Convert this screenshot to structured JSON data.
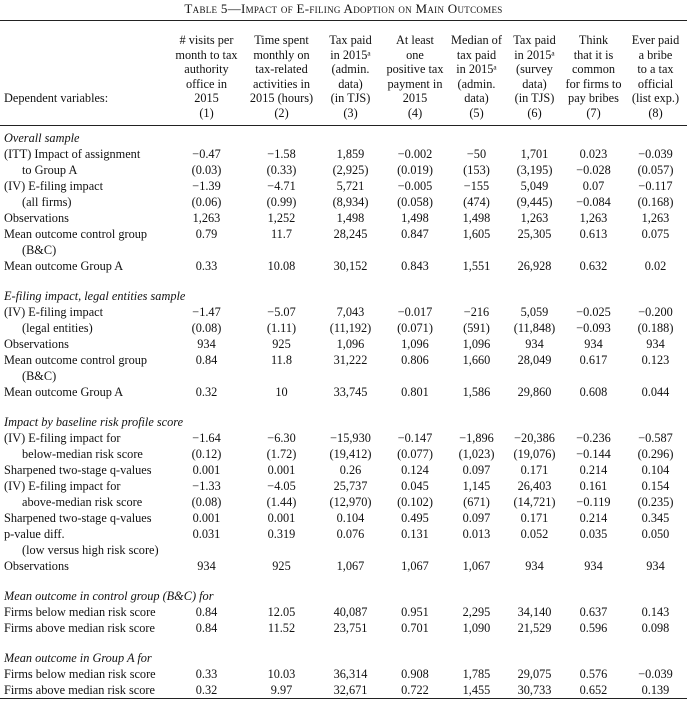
{
  "title": "Table 5—Impact of E-filing Adoption on Main Outcomes",
  "header": {
    "row_label": "Dependent variables:",
    "columns": [
      {
        "lines": [
          "# visits per",
          "month to tax",
          "authority",
          "office in",
          "2015"
        ],
        "number": "(1)"
      },
      {
        "lines": [
          "Time spent",
          "monthly on",
          "tax-related",
          "activities in",
          "2015 (hours)"
        ],
        "number": "(2)"
      },
      {
        "lines": [
          "Tax paid",
          "in 2015ᵃ",
          "(admin.",
          "data)",
          "(in TJS)"
        ],
        "number": "(3)"
      },
      {
        "lines": [
          "At least",
          "one",
          "positive tax",
          "payment in",
          "2015"
        ],
        "number": "(4)"
      },
      {
        "lines": [
          "Median of",
          "tax paid",
          "in 2015ᵃ",
          "(admin.",
          "data)"
        ],
        "number": "(5)"
      },
      {
        "lines": [
          "Tax paid",
          "in 2015ᵃ",
          "(survey",
          "data)",
          "(in TJS)"
        ],
        "number": "(6)"
      },
      {
        "lines": [
          "Think",
          "that it is",
          "common",
          "for firms to",
          "pay bribes"
        ],
        "number": "(7)"
      },
      {
        "lines": [
          "Ever paid",
          "a bribe",
          "to a tax",
          "official",
          "(list exp.)"
        ],
        "number": "(8)"
      }
    ]
  },
  "sections": [
    {
      "title": "Overall sample",
      "rows": [
        {
          "label": "(ITT) Impact of assignment",
          "values": [
            "−0.47",
            "−1.58",
            "1,859",
            "−0.002",
            "−50",
            "1,701",
            "0.023",
            "−0.039"
          ],
          "second_line": {
            "label": "to Group A",
            "values": [
              "(0.03)",
              "(0.33)",
              "(2,925)",
              "(0.019)",
              "(153)",
              "(3,195)",
              "−0.028",
              "(0.057)"
            ]
          }
        },
        {
          "label": "(IV) E-filing impact",
          "values": [
            "−1.39",
            "−4.71",
            "5,721",
            "−0.005",
            "−155",
            "5,049",
            "0.07",
            "−0.117"
          ],
          "second_line": {
            "label": "(all firms)",
            "values": [
              "(0.06)",
              "(0.99)",
              "(8,934)",
              "(0.058)",
              "(474)",
              "(9,445)",
              "−0.084",
              "(0.168)"
            ]
          }
        },
        {
          "label": "Observations",
          "values": [
            "1,263",
            "1,252",
            "1,498",
            "1,498",
            "1,498",
            "1,263",
            "1,263",
            "1,263"
          ]
        },
        {
          "label": "Mean outcome control group",
          "values": [
            "0.79",
            "11.7",
            "28,245",
            "0.847",
            "1,605",
            "25,305",
            "0.613",
            "0.075"
          ],
          "second_line": {
            "label": "(B&C)"
          }
        },
        {
          "label": "Mean outcome Group A",
          "values": [
            "0.33",
            "10.08",
            "30,152",
            "0.843",
            "1,551",
            "26,928",
            "0.632",
            "0.02"
          ]
        }
      ]
    },
    {
      "title": "E-filing impact, legal entities sample",
      "rows": [
        {
          "label": "(IV) E-filing impact",
          "values": [
            "−1.47",
            "−5.07",
            "7,043",
            "−0.017",
            "−216",
            "5,059",
            "−0.025",
            "−0.200"
          ],
          "second_line": {
            "label": "(legal entities)",
            "values": [
              "(0.08)",
              "(1.11)",
              "(11,192)",
              "(0.071)",
              "(591)",
              "(11,848)",
              "−0.093",
              "(0.188)"
            ]
          }
        },
        {
          "label": "Observations",
          "values": [
            "934",
            "925",
            "1,096",
            "1,096",
            "1,096",
            "934",
            "934",
            "934"
          ]
        },
        {
          "label": "Mean outcome control group",
          "values": [
            "0.84",
            "11.8",
            "31,222",
            "0.806",
            "1,660",
            "28,049",
            "0.617",
            "0.123"
          ],
          "second_line": {
            "label": "(B&C)"
          }
        },
        {
          "label": "Mean outcome Group A",
          "values": [
            "0.32",
            "10",
            "33,745",
            "0.801",
            "1,586",
            "29,860",
            "0.608",
            "0.044"
          ]
        }
      ]
    },
    {
      "title": "Impact by baseline risk profile score",
      "rows": [
        {
          "label": "(IV) E-filing impact for",
          "values": [
            "−1.64",
            "−6.30",
            "−15,930",
            "−0.147",
            "−1,896",
            "−20,386",
            "−0.236",
            "−0.587"
          ],
          "second_line": {
            "label": "below-median risk score",
            "values": [
              "(0.12)",
              "(1.72)",
              "(19,412)",
              "(0.077)",
              "(1,023)",
              "(19,076)",
              "−0.144",
              "(0.296)"
            ]
          }
        },
        {
          "label": "Sharpened two-stage q-values",
          "values": [
            "0.001",
            "0.001",
            "0.26",
            "0.124",
            "0.097",
            "0.171",
            "0.214",
            "0.104"
          ]
        },
        {
          "label": "(IV) E-filing impact for",
          "values": [
            "−1.33",
            "−4.05",
            "25,737",
            "0.045",
            "1,145",
            "26,403",
            "0.161",
            "0.154"
          ],
          "second_line": {
            "label": "above-median risk score",
            "values": [
              "(0.08)",
              "(1.44)",
              "(12,970)",
              "(0.102)",
              "(671)",
              "(14,721)",
              "−0.119",
              "(0.235)"
            ]
          }
        },
        {
          "label": "Sharpened two-stage q-values",
          "values": [
            "0.001",
            "0.001",
            "0.104",
            "0.495",
            "0.097",
            "0.171",
            "0.214",
            "0.345"
          ]
        },
        {
          "label": "p-value diff.",
          "values": [
            "0.031",
            "0.319",
            "0.076",
            "0.131",
            "0.013",
            "0.052",
            "0.035",
            "0.050"
          ],
          "second_line": {
            "label": "(low versus high risk score)"
          }
        },
        {
          "label": "Observations",
          "values": [
            "934",
            "925",
            "1,067",
            "1,067",
            "1,067",
            "934",
            "934",
            "934"
          ]
        }
      ]
    },
    {
      "title": "Mean outcome in control group (B&C) for",
      "rows": [
        {
          "label": "Firms below median risk score",
          "values": [
            "0.84",
            "12.05",
            "40,087",
            "0.951",
            "2,295",
            "34,140",
            "0.637",
            "0.143"
          ]
        },
        {
          "label": "Firms above median risk score",
          "values": [
            "0.84",
            "11.52",
            "23,751",
            "0.701",
            "1,090",
            "21,529",
            "0.596",
            "0.098"
          ]
        }
      ]
    },
    {
      "title": "Mean outcome in Group A for",
      "rows": [
        {
          "label": "Firms below median risk score",
          "values": [
            "0.33",
            "10.03",
            "36,314",
            "0.908",
            "1,785",
            "29,075",
            "0.576",
            "−0.039"
          ]
        },
        {
          "label": "Firms above median risk score",
          "values": [
            "0.32",
            "9.97",
            "32,671",
            "0.722",
            "1,455",
            "30,733",
            "0.652",
            "0.139"
          ]
        }
      ]
    }
  ]
}
